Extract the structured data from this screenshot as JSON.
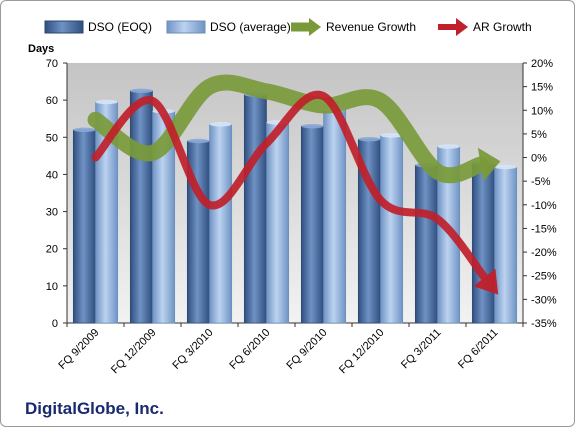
{
  "chart_data": {
    "type": "bar",
    "categories": [
      "FQ 9/2009",
      "FQ 12/2009",
      "FQ 3/2010",
      "FQ 6/2010",
      "FQ 9/2010",
      "FQ 12/2010",
      "FQ 3/2011",
      "FQ 6/2011"
    ],
    "series": [
      {
        "name": "DSO (EOQ)",
        "values": [
          52,
          62.5,
          49,
          61.5,
          53,
          49.5,
          42.5,
          43
        ],
        "axis": "left",
        "color": "#4a6fa5"
      },
      {
        "name": "DSO (average)",
        "values": [
          59.5,
          57,
          53.5,
          54,
          57.5,
          50.5,
          47.5,
          42
        ],
        "axis": "left",
        "color": "#9ab8e2"
      },
      {
        "name": "Revenue Growth",
        "values": [
          8,
          1,
          15,
          14,
          11,
          12,
          -3,
          -1
        ],
        "axis": "right",
        "color": "#7a9a3a",
        "style": "arrow"
      },
      {
        "name": "AR Growth",
        "values": [
          0,
          12,
          -10,
          3,
          13,
          -9,
          -13,
          -28
        ],
        "axis": "right",
        "color": "#c0202a",
        "style": "arrow"
      }
    ],
    "ylabel": "Days",
    "ylim": [
      0,
      70
    ],
    "yticks": [
      "0",
      "10",
      "20",
      "30",
      "40",
      "50",
      "60",
      "70"
    ],
    "y2lim": [
      -35,
      20
    ],
    "y2ticks": [
      "20%",
      "15%",
      "10%",
      "5%",
      "0%",
      "-5%",
      "-10%",
      "-15%",
      "-20%",
      "-25%",
      "-30%",
      "-35%"
    ],
    "legend_position": "top",
    "grid": false
  },
  "company": "DigitalGlobe, Inc."
}
